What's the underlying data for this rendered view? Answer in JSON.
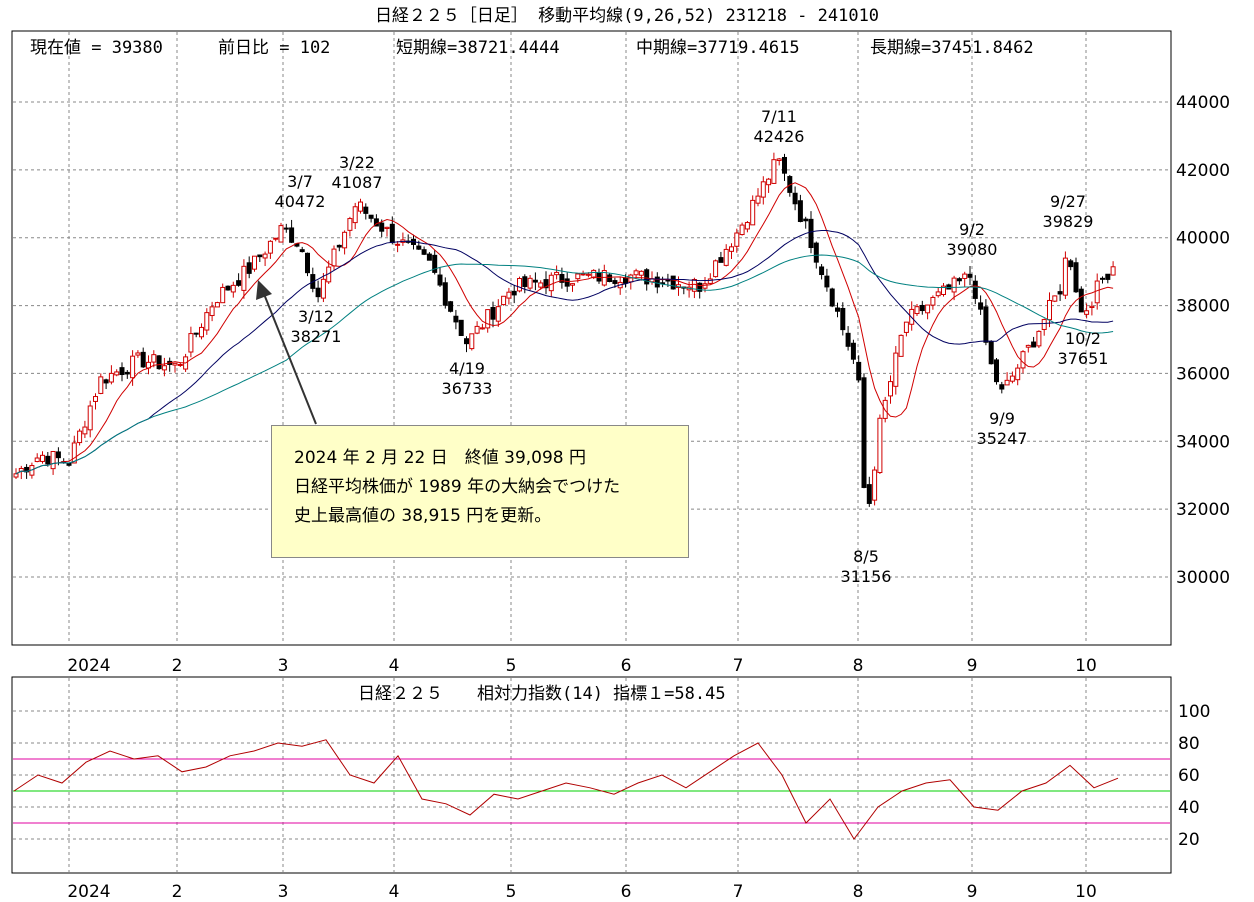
{
  "title": "日経２２５［日足］ 移動平均線(9,26,52)  231218 - 241010",
  "header_stats": {
    "current_value": "現在値 = 39380",
    "change": "前日比 = 102",
    "short_ma": "短期線=38721.4444",
    "mid_ma": "中期線=37719.4615",
    "long_ma": "長期線=37451.8462"
  },
  "annotation": {
    "line1": "2024 年 2 月 22 日　終値 39,098 円",
    "line2": "日経平均株価が 1989 年の大納会でつけた",
    "line3": "史上最高値の 38,915 円を更新。"
  },
  "rsi_panel": {
    "title": "日経２２５　　相対力指数(14) 指標１=58.45"
  },
  "colors": {
    "short_ma": "#d00000",
    "mid_ma": "#000060",
    "long_ma": "#008080",
    "rsi_line": "#b00000",
    "rsi_upper_band": "#e000a0",
    "rsi_mid_band": "#00d000",
    "up_candle": "#d00000",
    "down_candle": "#000000",
    "annotation_bg": "#ffffc8"
  },
  "chart_data": [
    {
      "type": "candlestick",
      "title": "日経２２５［日足］ 移動平均線(9,26,52)  231218 - 241010",
      "xlabel": "",
      "ylabel": "",
      "x_tick_labels": [
        "2024",
        "2",
        "3",
        "4",
        "5",
        "6",
        "7",
        "8",
        "9",
        "10"
      ],
      "y_tick_labels": [
        "30000",
        "32000",
        "34000",
        "36000",
        "38000",
        "40000",
        "42000",
        "44000"
      ],
      "ylim": [
        28000,
        46000
      ],
      "grid": true,
      "series": [
        {
          "name": "短期線 (9)",
          "last": 38721.4444
        },
        {
          "name": "中期線 (26)",
          "last": 37719.4615
        },
        {
          "name": "長期線 (52)",
          "last": 37451.8462
        }
      ],
      "peaks_troughs": [
        {
          "date": "3/7",
          "value": 40472
        },
        {
          "date": "3/12",
          "value": 38271
        },
        {
          "date": "3/22",
          "value": 41087
        },
        {
          "date": "4/19",
          "value": 36733
        },
        {
          "date": "7/11",
          "value": 42426
        },
        {
          "date": "8/5",
          "value": 31156
        },
        {
          "date": "9/2",
          "value": 39080
        },
        {
          "date": "9/9",
          "value": 35247
        },
        {
          "date": "9/27",
          "value": 39829
        },
        {
          "date": "10/2",
          "value": 37651
        }
      ],
      "monthly_approx_close": {
        "2023-12": 33400,
        "2024-01": 36300,
        "2024-02": 39100,
        "2024-03": 40300,
        "2024-04": 38400,
        "2024-05": 38500,
        "2024-06": 39600,
        "2024-07": 39100,
        "2024-08": 38600,
        "2024-09": 37900,
        "2024-10": 39380
      },
      "current_value": 39380,
      "change": 102
    },
    {
      "type": "line",
      "title": "日経２２５　　相対力指数(14) 指標１=58.45",
      "x_tick_labels": [
        "2024",
        "2",
        "3",
        "4",
        "5",
        "6",
        "7",
        "8",
        "9",
        "10"
      ],
      "y_tick_labels": [
        "20",
        "40",
        "60",
        "80",
        "100"
      ],
      "ylim": [
        0,
        110
      ],
      "reference_lines": [
        30,
        50,
        70
      ],
      "series": [
        {
          "name": "RSI(14)",
          "last": 58.45
        }
      ],
      "approx_values": [
        50,
        60,
        55,
        68,
        75,
        70,
        72,
        62,
        65,
        72,
        75,
        80,
        78,
        82,
        60,
        55,
        72,
        45,
        42,
        35,
        48,
        45,
        50,
        55,
        52,
        48,
        55,
        60,
        52,
        62,
        72,
        80,
        60,
        30,
        45,
        20,
        40,
        50,
        55,
        57,
        40,
        38,
        50,
        55,
        66,
        52,
        58
      ]
    }
  ]
}
